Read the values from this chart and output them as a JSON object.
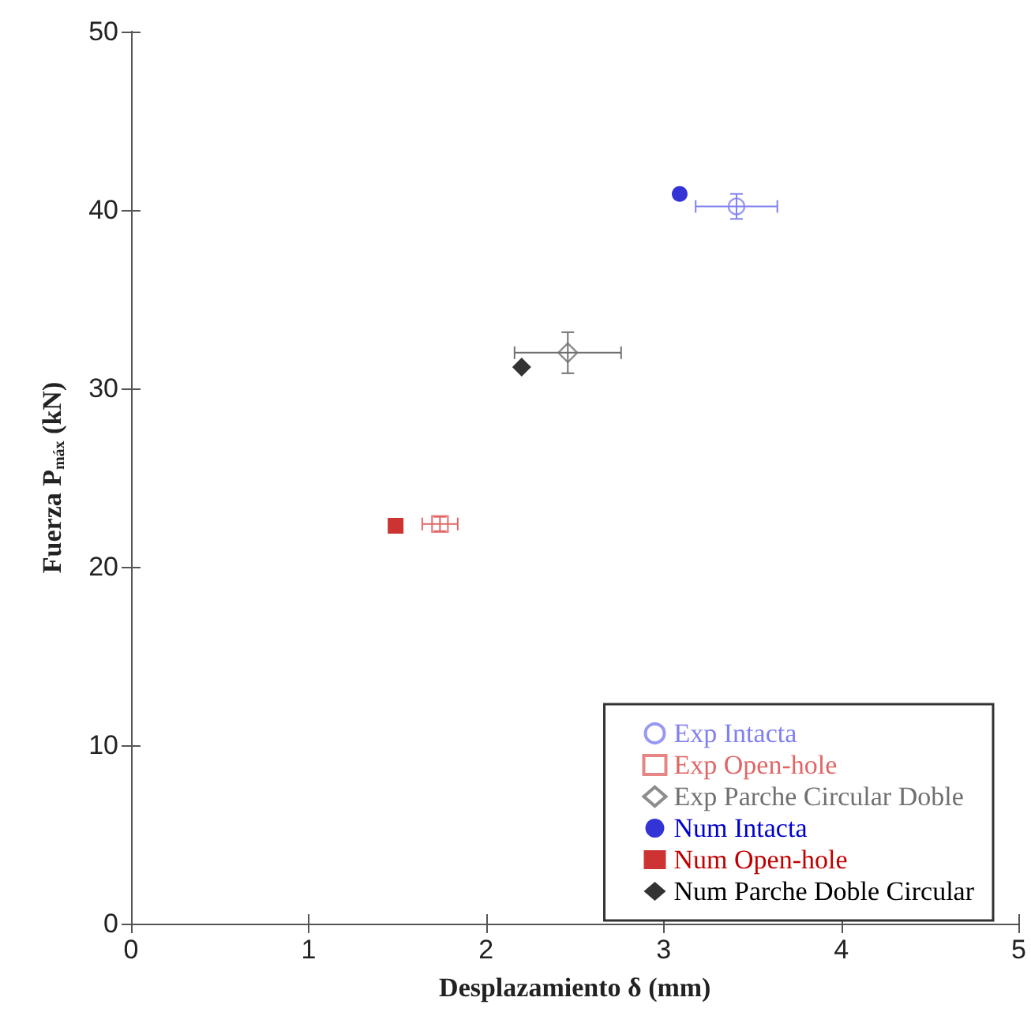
{
  "chart_data": {
    "type": "scatter",
    "xlabel": "Desplazamiento δ (mm)",
    "ylabel": "Fuerza P$_{máx}$ (kN)",
    "xlim": [
      0,
      5
    ],
    "xticks": [
      0,
      1,
      2,
      3,
      4,
      5
    ],
    "ylim": [
      0,
      50
    ],
    "yticks": [
      0,
      10,
      20,
      30,
      40,
      50
    ],
    "grid": false,
    "legend": "bottom right",
    "series": [
      {
        "name": "Exp Intacta",
        "color": "#8080f0",
        "marker": "circle",
        "x": [
          3.41
        ],
        "values": [
          40.2
        ],
        "errors": [
          0.7
        ],
        "xerrors": [
          0.23
        ]
      },
      {
        "name": "Exp Open-hole",
        "color": "#e06666",
        "marker": "square",
        "x": [
          1.74
        ],
        "values": [
          22.4
        ],
        "errors": [
          0.4
        ],
        "xerrors": [
          0.1
        ]
      },
      {
        "name": "Exp Parche Circular Doble",
        "color": "#707070",
        "marker": "diamond",
        "x": [
          2.46
        ],
        "values": [
          32.0
        ],
        "errors": [
          1.15
        ],
        "xerrors": [
          0.3
        ]
      },
      {
        "name": "Num Intacta",
        "color": "#0000cc",
        "marker": "circle",
        "x": [
          3.09
        ],
        "values": [
          40.9
        ]
      },
      {
        "name": "Num Open-hole",
        "color": "#c00000",
        "marker": "square",
        "x": [
          1.49
        ],
        "values": [
          22.3
        ]
      },
      {
        "name": "Num Parche Doble Circular",
        "color": "#000000",
        "marker": "diamond",
        "x": [
          2.2
        ],
        "values": [
          31.2
        ]
      }
    ]
  }
}
